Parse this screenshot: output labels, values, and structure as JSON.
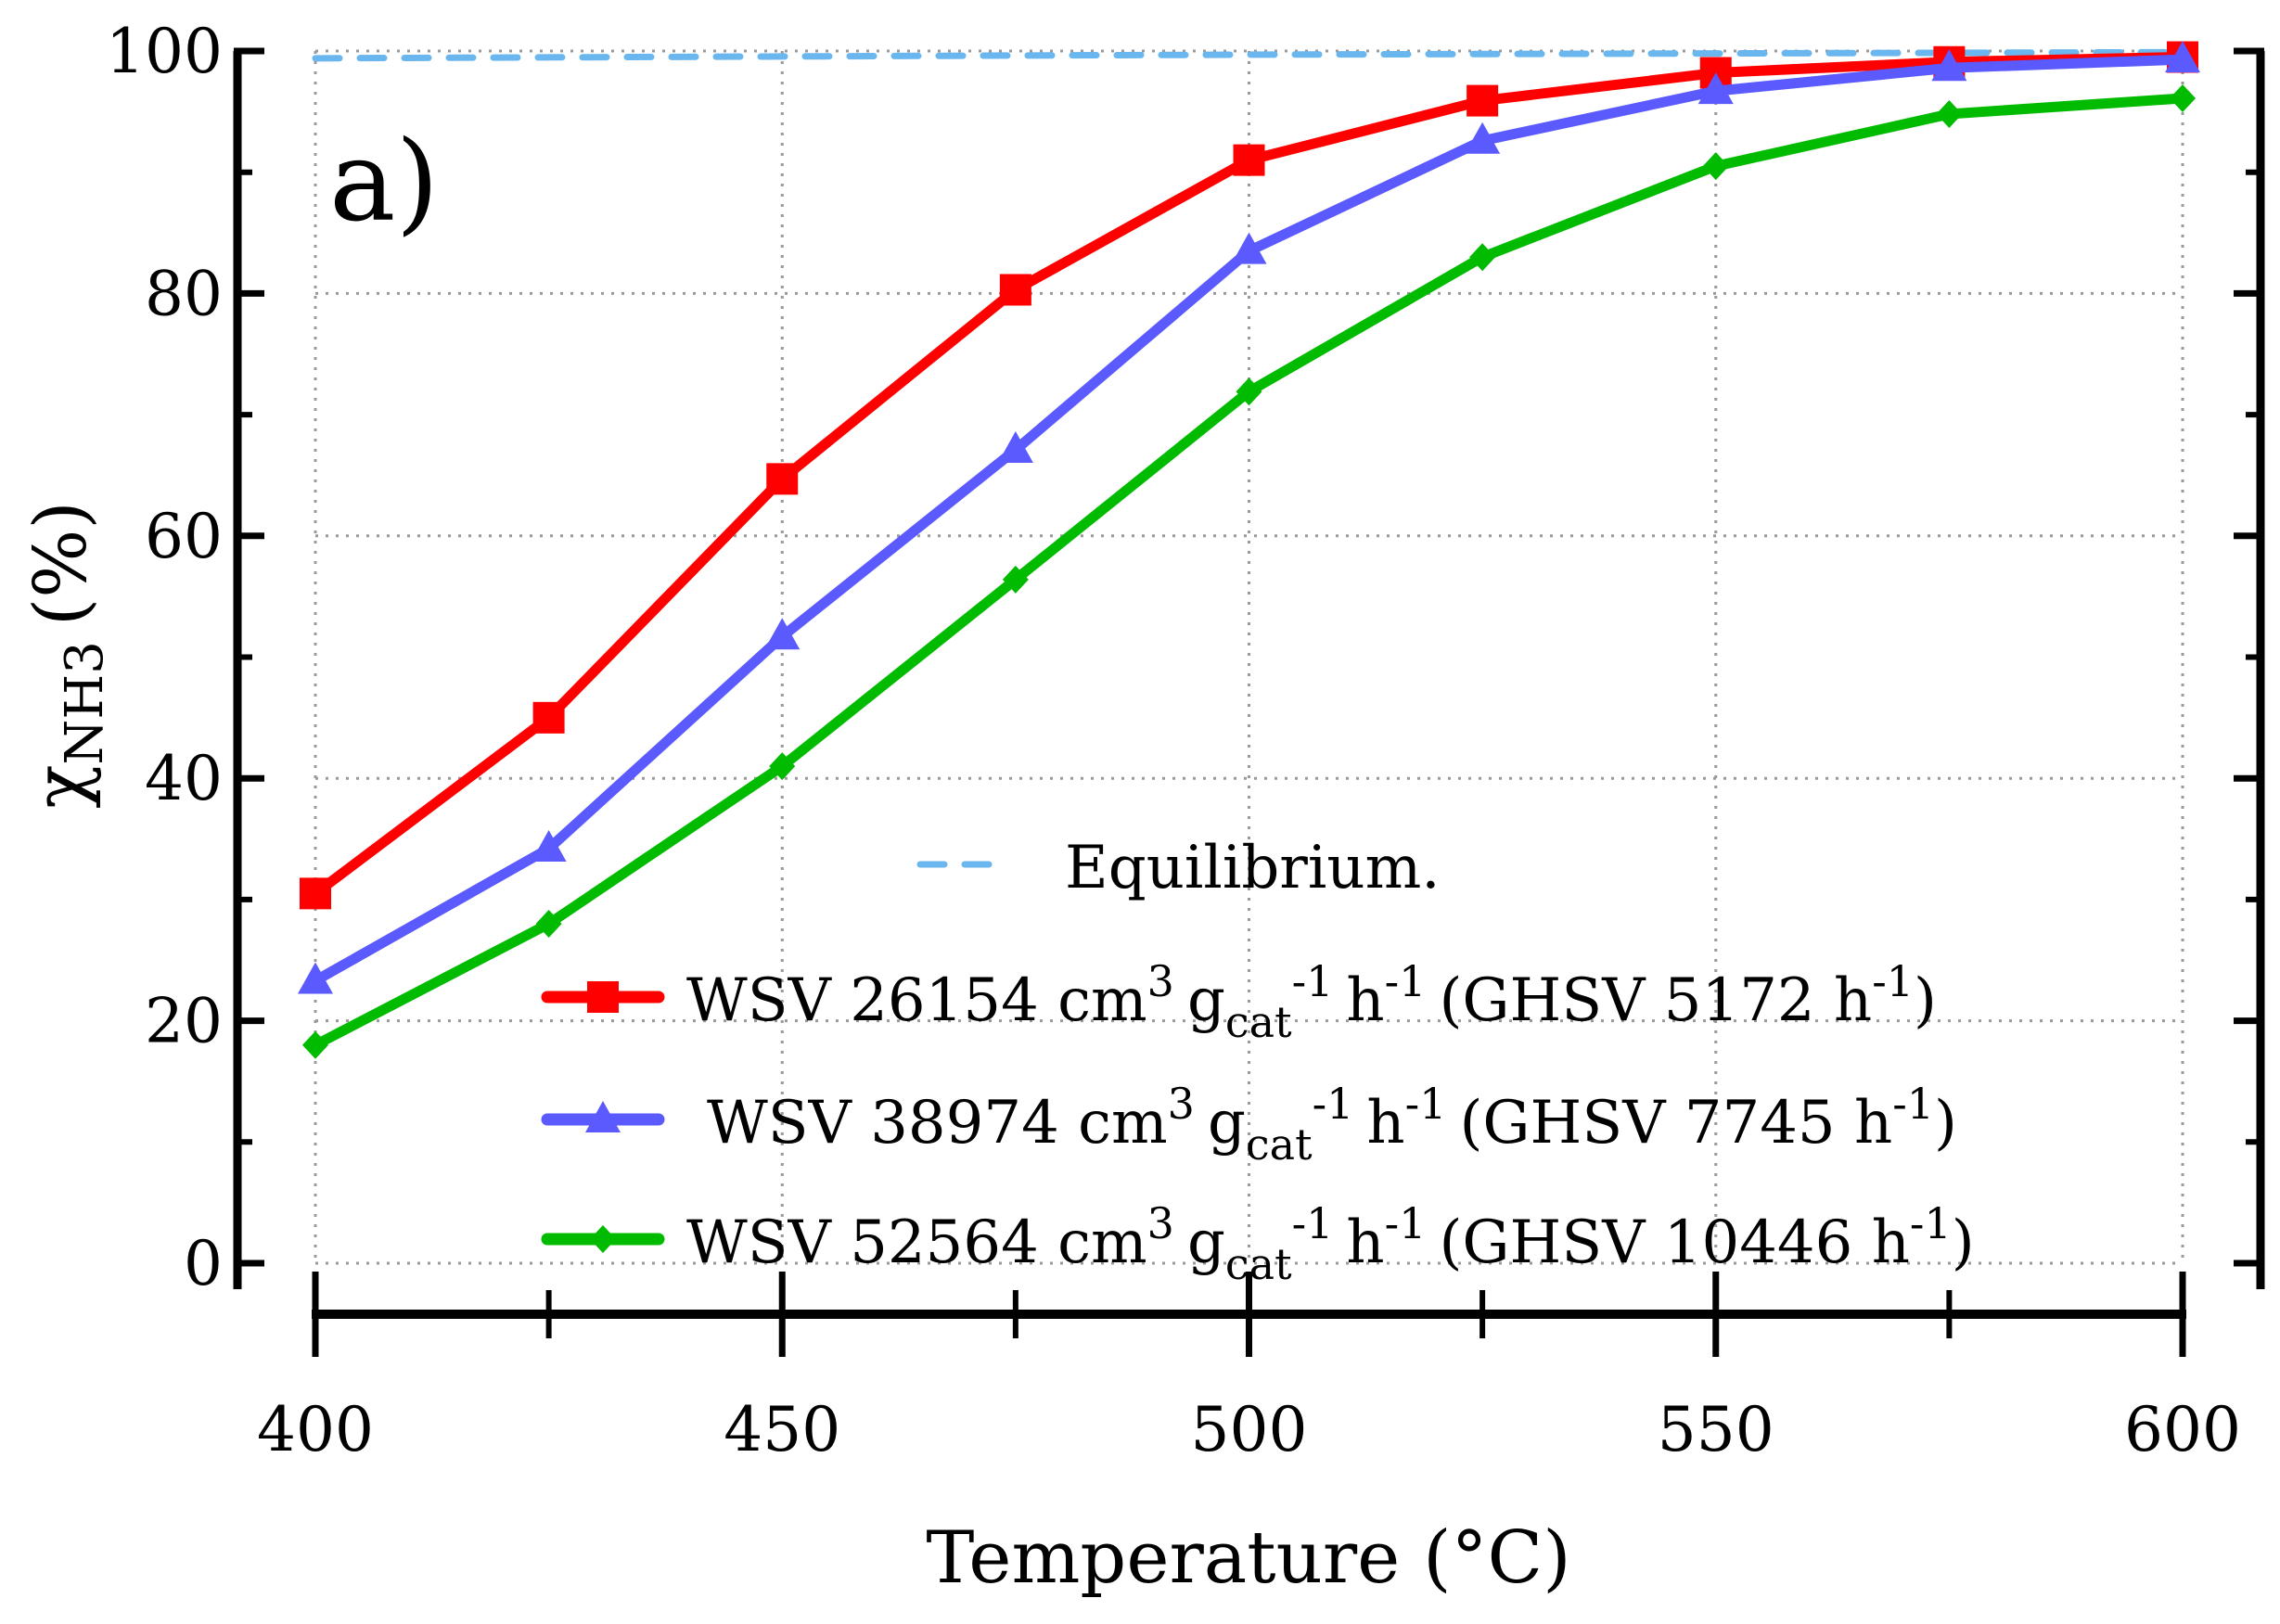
{
  "chart_data": {
    "type": "line",
    "panel_label": "a)",
    "xlabel": "Temperature (°C)",
    "ylabel": {
      "symbol": "χ",
      "subscript": "NH3",
      "unit": "(%)"
    },
    "xlim": [
      400,
      600
    ],
    "ylim": [
      0,
      100
    ],
    "x_ticks": [
      400,
      450,
      500,
      550,
      600
    ],
    "y_ticks": [
      0,
      20,
      40,
      60,
      80,
      100
    ],
    "grid": true,
    "legend_position": "bottom-right",
    "series": [
      {
        "name": "Equilibrium.",
        "legend": {
          "text": "Equilibrium."
        },
        "style": "dashed",
        "marker": "none",
        "color": "#6ab6ee",
        "x": [
          400,
          500,
          600
        ],
        "y": [
          99.4,
          99.7,
          99.9
        ]
      },
      {
        "name": "WSV 26154 cm3 gcat-1 h-1 (GHSV 5172 h-1)",
        "legend": {
          "wsv": "WSV 26154 cm",
          "ghsv": "(GHSV 5172 h",
          "close": ")"
        },
        "style": "solid",
        "marker": "square",
        "color": "#ff0000",
        "x": [
          400,
          425,
          450,
          475,
          500,
          525,
          550,
          575,
          600
        ],
        "y": [
          30.5,
          45.0,
          64.7,
          80.3,
          91.0,
          95.9,
          98.2,
          99.1,
          99.5
        ]
      },
      {
        "name": "WSV 38974 cm3 gcat-1 h-1 (GHSV 7745 h-1)",
        "legend": {
          "wsv": "WSV 38974 cm",
          "ghsv": "(GHSV 7745 h",
          "close": ")"
        },
        "style": "solid",
        "marker": "triangle",
        "color": "#5a5aff",
        "x": [
          400,
          425,
          450,
          475,
          500,
          525,
          550,
          575,
          600
        ],
        "y": [
          23.3,
          34.2,
          51.7,
          67.1,
          83.5,
          92.6,
          96.7,
          98.6,
          99.3
        ]
      },
      {
        "name": "WSV 52564 cm3 gcat-1 h-1 (GHSV 10446 h-1)",
        "legend": {
          "wsv": "WSV 52564 cm",
          "ghsv": "(GHSV 10446 h",
          "close": ")"
        },
        "style": "solid",
        "marker": "diamond",
        "color": "#00bb00",
        "x": [
          400,
          425,
          450,
          475,
          500,
          525,
          550,
          575,
          600
        ],
        "y": [
          18.0,
          28.0,
          41.0,
          56.4,
          71.9,
          83.0,
          90.5,
          94.8,
          96.1
        ]
      }
    ],
    "legend_units": {
      "cm_sup": "3",
      "g": "g",
      "cat_sub": "cat",
      "neg_one": "-1",
      "h": "h"
    }
  }
}
